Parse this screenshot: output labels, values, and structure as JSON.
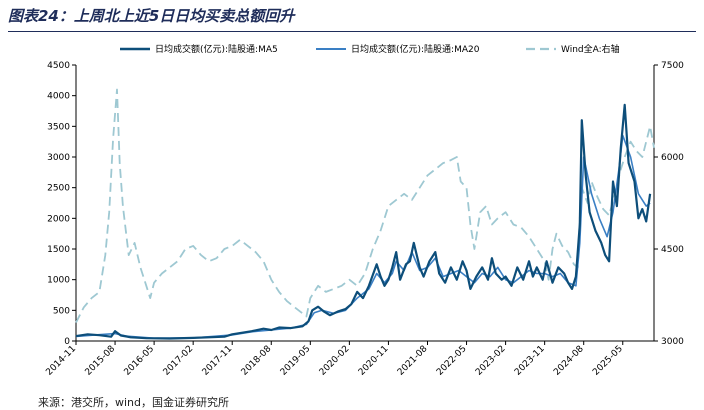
{
  "header": {
    "title": "图表24：上周北上近5日日均买卖总额回升"
  },
  "footer": {
    "source": "来源：港交所，wind，国金证券研究所"
  },
  "colors": {
    "ma5": "#0d4e7a",
    "ma20": "#3a7fc4",
    "wind": "#9ec8d2",
    "axis": "#000000"
  },
  "chart_data": {
    "type": "line",
    "title": "上周北上近5日日均买卖总额回升",
    "x_tick_labels": [
      "2014-11",
      "2015-08",
      "2016-05",
      "2017-02",
      "2017-11",
      "2018-08",
      "2019-05",
      "2020-02",
      "2020-11",
      "2021-08",
      "2022-05",
      "2023-02",
      "2023-11",
      "2024-08",
      "2025-05"
    ],
    "x_range": [
      0,
      14.8
    ],
    "left_axis": {
      "range": [
        0,
        4500
      ],
      "ticks": [
        "0",
        "500",
        "1000",
        "1500",
        "2000",
        "2500",
        "3000",
        "3500",
        "4000",
        "4500"
      ]
    },
    "right_axis": {
      "range": [
        3000,
        7500
      ],
      "ticks": [
        "3000",
        "4500",
        "6000",
        "7500"
      ]
    },
    "legend_position": "top",
    "series": [
      {
        "name": "日均成交额(亿元):陆股通:MA5",
        "axis": "left",
        "style": "solid",
        "points": [
          [
            0,
            80
          ],
          [
            0.3,
            110
          ],
          [
            0.6,
            95
          ],
          [
            0.9,
            70
          ],
          [
            1.0,
            160
          ],
          [
            1.15,
            90
          ],
          [
            1.4,
            60
          ],
          [
            1.8,
            45
          ],
          [
            2.4,
            40
          ],
          [
            3.0,
            50
          ],
          [
            3.4,
            60
          ],
          [
            3.8,
            70
          ],
          [
            4.0,
            110
          ],
          [
            4.3,
            140
          ],
          [
            4.5,
            160
          ],
          [
            4.8,
            200
          ],
          [
            5.0,
            180
          ],
          [
            5.2,
            220
          ],
          [
            5.5,
            210
          ],
          [
            5.8,
            240
          ],
          [
            5.95,
            320
          ],
          [
            6.05,
            500
          ],
          [
            6.2,
            560
          ],
          [
            6.35,
            480
          ],
          [
            6.5,
            420
          ],
          [
            6.7,
            480
          ],
          [
            6.9,
            520
          ],
          [
            7.05,
            600
          ],
          [
            7.2,
            800
          ],
          [
            7.35,
            700
          ],
          [
            7.5,
            900
          ],
          [
            7.7,
            1250
          ],
          [
            7.8,
            1050
          ],
          [
            7.9,
            900
          ],
          [
            8.0,
            1000
          ],
          [
            8.1,
            1200
          ],
          [
            8.2,
            1450
          ],
          [
            8.3,
            1000
          ],
          [
            8.45,
            1250
          ],
          [
            8.55,
            1300
          ],
          [
            8.65,
            1600
          ],
          [
            8.8,
            1200
          ],
          [
            8.9,
            1050
          ],
          [
            9.05,
            1300
          ],
          [
            9.2,
            1450
          ],
          [
            9.3,
            1100
          ],
          [
            9.45,
            950
          ],
          [
            9.6,
            1200
          ],
          [
            9.75,
            1000
          ],
          [
            9.9,
            1300
          ],
          [
            10.0,
            1150
          ],
          [
            10.1,
            850
          ],
          [
            10.25,
            1050
          ],
          [
            10.4,
            1200
          ],
          [
            10.55,
            1000
          ],
          [
            10.65,
            1350
          ],
          [
            10.75,
            1100
          ],
          [
            10.9,
            1000
          ],
          [
            11.0,
            1050
          ],
          [
            11.15,
            900
          ],
          [
            11.3,
            1200
          ],
          [
            11.45,
            1000
          ],
          [
            11.6,
            1300
          ],
          [
            11.7,
            1050
          ],
          [
            11.8,
            1200
          ],
          [
            11.95,
            1000
          ],
          [
            12.05,
            1300
          ],
          [
            12.2,
            950
          ],
          [
            12.35,
            1200
          ],
          [
            12.5,
            1100
          ],
          [
            12.6,
            950
          ],
          [
            12.7,
            850
          ],
          [
            12.8,
            1050
          ],
          [
            12.9,
            1900
          ],
          [
            12.95,
            3600
          ],
          [
            13.05,
            2700
          ],
          [
            13.15,
            2100
          ],
          [
            13.3,
            1800
          ],
          [
            13.45,
            1600
          ],
          [
            13.55,
            1400
          ],
          [
            13.65,
            1300
          ],
          [
            13.75,
            2600
          ],
          [
            13.85,
            2200
          ],
          [
            13.95,
            3150
          ],
          [
            14.05,
            3850
          ],
          [
            14.15,
            2900
          ],
          [
            14.3,
            2600
          ],
          [
            14.4,
            2000
          ],
          [
            14.5,
            2150
          ],
          [
            14.6,
            1950
          ],
          [
            14.7,
            2400
          ]
        ]
      },
      {
        "name": "日均成交额(亿元):陆股通:MA20",
        "axis": "left",
        "style": "solid",
        "points": [
          [
            0,
            75
          ],
          [
            0.5,
            100
          ],
          [
            1.0,
            120
          ],
          [
            1.3,
            80
          ],
          [
            2.0,
            45
          ],
          [
            3.0,
            50
          ],
          [
            4.0,
            100
          ],
          [
            4.5,
            150
          ],
          [
            5.0,
            180
          ],
          [
            5.5,
            210
          ],
          [
            5.9,
            270
          ],
          [
            6.1,
            460
          ],
          [
            6.3,
            500
          ],
          [
            6.6,
            450
          ],
          [
            6.9,
            500
          ],
          [
            7.2,
            700
          ],
          [
            7.5,
            850
          ],
          [
            7.7,
            1100
          ],
          [
            7.9,
            950
          ],
          [
            8.1,
            1100
          ],
          [
            8.2,
            1300
          ],
          [
            8.4,
            1150
          ],
          [
            8.6,
            1450
          ],
          [
            8.8,
            1150
          ],
          [
            9.0,
            1200
          ],
          [
            9.2,
            1350
          ],
          [
            9.4,
            1050
          ],
          [
            9.6,
            1100
          ],
          [
            9.8,
            1150
          ],
          [
            10.0,
            1050
          ],
          [
            10.2,
            950
          ],
          [
            10.4,
            1100
          ],
          [
            10.6,
            1050
          ],
          [
            10.8,
            1200
          ],
          [
            11.0,
            1000
          ],
          [
            11.2,
            950
          ],
          [
            11.4,
            1050
          ],
          [
            11.6,
            1150
          ],
          [
            11.8,
            1100
          ],
          [
            12.0,
            1100
          ],
          [
            12.2,
            1050
          ],
          [
            12.4,
            1100
          ],
          [
            12.6,
            950
          ],
          [
            12.8,
            900
          ],
          [
            12.9,
            1600
          ],
          [
            13.0,
            3000
          ],
          [
            13.2,
            2400
          ],
          [
            13.4,
            2000
          ],
          [
            13.6,
            1700
          ],
          [
            13.75,
            2100
          ],
          [
            13.9,
            2800
          ],
          [
            14.0,
            3350
          ],
          [
            14.2,
            3000
          ],
          [
            14.4,
            2400
          ],
          [
            14.6,
            2200
          ],
          [
            14.7,
            2250
          ]
        ]
      },
      {
        "name": "Wind全A:右轴",
        "axis": "right",
        "style": "dashed",
        "points": [
          [
            0,
            3300
          ],
          [
            0.2,
            3550
          ],
          [
            0.4,
            3700
          ],
          [
            0.6,
            3800
          ],
          [
            0.75,
            4400
          ],
          [
            0.85,
            5100
          ],
          [
            0.95,
            6300
          ],
          [
            1.05,
            7100
          ],
          [
            1.12,
            5900
          ],
          [
            1.2,
            5200
          ],
          [
            1.35,
            4400
          ],
          [
            1.5,
            4600
          ],
          [
            1.65,
            4200
          ],
          [
            1.8,
            3900
          ],
          [
            1.9,
            3700
          ],
          [
            2.0,
            3950
          ],
          [
            2.2,
            4100
          ],
          [
            2.4,
            4200
          ],
          [
            2.6,
            4300
          ],
          [
            2.8,
            4500
          ],
          [
            3.0,
            4550
          ],
          [
            3.2,
            4400
          ],
          [
            3.4,
            4300
          ],
          [
            3.6,
            4350
          ],
          [
            3.8,
            4500
          ],
          [
            4.0,
            4550
          ],
          [
            4.2,
            4650
          ],
          [
            4.4,
            4550
          ],
          [
            4.6,
            4450
          ],
          [
            4.8,
            4300
          ],
          [
            5.0,
            4000
          ],
          [
            5.2,
            3800
          ],
          [
            5.4,
            3650
          ],
          [
            5.6,
            3550
          ],
          [
            5.8,
            3450
          ],
          [
            5.9,
            3400
          ],
          [
            6.0,
            3700
          ],
          [
            6.2,
            3900
          ],
          [
            6.4,
            3800
          ],
          [
            6.6,
            3850
          ],
          [
            6.8,
            3900
          ],
          [
            7.0,
            4000
          ],
          [
            7.2,
            3900
          ],
          [
            7.4,
            4100
          ],
          [
            7.6,
            4500
          ],
          [
            7.8,
            4800
          ],
          [
            8.0,
            5200
          ],
          [
            8.2,
            5300
          ],
          [
            8.4,
            5400
          ],
          [
            8.6,
            5300
          ],
          [
            8.8,
            5500
          ],
          [
            9.0,
            5700
          ],
          [
            9.2,
            5800
          ],
          [
            9.4,
            5900
          ],
          [
            9.6,
            5950
          ],
          [
            9.75,
            6000
          ],
          [
            9.85,
            5600
          ],
          [
            10.0,
            5500
          ],
          [
            10.1,
            4900
          ],
          [
            10.2,
            4500
          ],
          [
            10.35,
            5100
          ],
          [
            10.5,
            5200
          ],
          [
            10.65,
            4900
          ],
          [
            10.8,
            5000
          ],
          [
            11.0,
            5100
          ],
          [
            11.2,
            4900
          ],
          [
            11.4,
            4850
          ],
          [
            11.6,
            4700
          ],
          [
            11.8,
            4500
          ],
          [
            12.0,
            4300
          ],
          [
            12.1,
            4000
          ],
          [
            12.2,
            4500
          ],
          [
            12.3,
            4750
          ],
          [
            12.45,
            4550
          ],
          [
            12.6,
            4450
          ],
          [
            12.75,
            4250
          ],
          [
            12.85,
            4200
          ],
          [
            12.9,
            5000
          ],
          [
            12.95,
            5500
          ],
          [
            13.1,
            5250
          ],
          [
            13.2,
            5600
          ],
          [
            13.35,
            5350
          ],
          [
            13.5,
            5150
          ],
          [
            13.65,
            5050
          ],
          [
            13.8,
            5400
          ],
          [
            13.95,
            5800
          ],
          [
            14.05,
            6000
          ],
          [
            14.2,
            6250
          ],
          [
            14.35,
            6100
          ],
          [
            14.5,
            6000
          ],
          [
            14.6,
            6250
          ],
          [
            14.7,
            6500
          ],
          [
            14.8,
            6150
          ]
        ]
      }
    ]
  }
}
